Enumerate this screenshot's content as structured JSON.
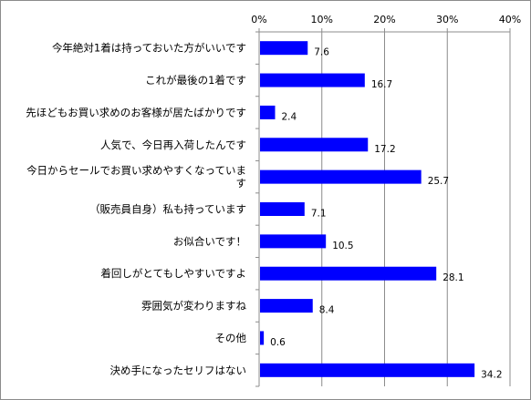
{
  "chart_data": {
    "type": "bar",
    "orientation": "horizontal",
    "title": "",
    "xlabel": "",
    "ylabel": "",
    "xlim": [
      0,
      40
    ],
    "x_ticks": [
      "0%",
      "10%",
      "20%",
      "30%",
      "40%"
    ],
    "x_axis_position": "top",
    "grid": true,
    "legend": "none",
    "bar_color": "#0000ff",
    "categories": [
      [
        "今年絶対1着は持っておいた方がいいです"
      ],
      [
        "これが最後の1着です"
      ],
      [
        "先ほどもお買い求めのお客様が居たばかりです"
      ],
      [
        "人気で、今日再入荷したんです"
      ],
      [
        "今日からセールでお買い求めやすくなっていま",
        "す"
      ],
      [
        "（販売員自身）私も持っています"
      ],
      [
        "お似合いです！"
      ],
      [
        "着回しがとてもしやすいですよ"
      ],
      [
        "雰囲気が変わりますね"
      ],
      [
        "その他"
      ],
      [
        "決め手になったセリフはない"
      ]
    ],
    "values": [
      7.6,
      16.7,
      2.4,
      17.2,
      25.7,
      7.1,
      10.5,
      28.1,
      8.4,
      0.6,
      34.2
    ],
    "data_labels": [
      "7.6",
      "16.7",
      "2.4",
      "17.2",
      "25.7",
      "7.1",
      "10.5",
      "28.1",
      "8.4",
      "0.6",
      "34.2"
    ]
  }
}
